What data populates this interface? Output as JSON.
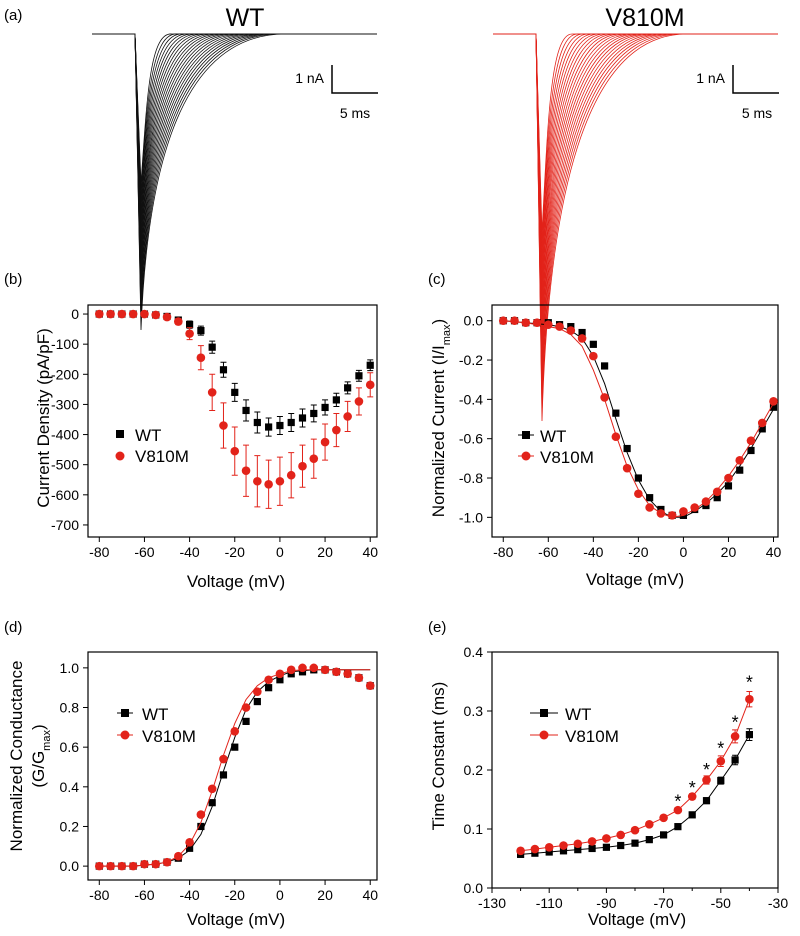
{
  "panel_a": {
    "tag": "(a)",
    "wt_title": "WT",
    "mut_title": "V810M",
    "wt_scale_current": "1 nA",
    "wt_scale_time": "5 ms",
    "mut_scale_current": "1 nA",
    "mut_scale_time": "5 ms",
    "wt_color": "#111111",
    "mut_color": "#e2231a"
  },
  "chart_data": [
    {
      "panel": "b",
      "tag": "(b)",
      "type": "scatter",
      "xlabel": "Voltage (mV)",
      "ylabel": "Current Density (pA/pF)",
      "xlim": [
        -85,
        43
      ],
      "ylim": [
        -740,
        30
      ],
      "xticks": [
        -80,
        -60,
        -40,
        -20,
        0,
        20,
        40
      ],
      "yticks": [
        0,
        -100,
        -200,
        -300,
        -400,
        -500,
        -600,
        -700
      ],
      "legend": "left",
      "x": [
        -80,
        -75,
        -70,
        -65,
        -60,
        -55,
        -50,
        -45,
        -40,
        -35,
        -30,
        -25,
        -20,
        -15,
        -10,
        -5,
        0,
        5,
        10,
        15,
        20,
        25,
        30,
        35,
        40
      ],
      "series": [
        {
          "name": "WT",
          "marker": "square",
          "color": "#000000",
          "values": [
            0,
            0,
            0,
            0,
            0,
            -3,
            -8,
            -20,
            -35,
            -55,
            -110,
            -185,
            -260,
            -320,
            -360,
            -375,
            -370,
            -360,
            -345,
            -330,
            -310,
            -285,
            -245,
            -205,
            -170
          ],
          "errors": [
            2,
            2,
            2,
            2,
            2,
            3,
            5,
            8,
            12,
            15,
            20,
            25,
            30,
            35,
            35,
            30,
            30,
            30,
            30,
            28,
            25,
            22,
            20,
            18,
            18
          ]
        },
        {
          "name": "V810M",
          "marker": "circle",
          "color": "#e2231a",
          "values": [
            0,
            0,
            0,
            0,
            0,
            -3,
            -10,
            -25,
            -65,
            -145,
            -260,
            -370,
            -455,
            -520,
            -555,
            -565,
            -555,
            -535,
            -505,
            -480,
            -425,
            -385,
            -340,
            -290,
            -235
          ],
          "errors": [
            2,
            2,
            2,
            2,
            3,
            4,
            6,
            10,
            20,
            40,
            60,
            75,
            80,
            85,
            85,
            80,
            80,
            75,
            70,
            65,
            60,
            55,
            50,
            45,
            40
          ]
        }
      ]
    },
    {
      "panel": "c",
      "tag": "(c)",
      "type": "scatter",
      "xlabel": "Voltage (mV)",
      "ylabel": "Normalized Current (I/I",
      "ylabel_sub": "max",
      "ylabel_end": ")",
      "xlim": [
        -85,
        42
      ],
      "ylim": [
        -1.1,
        0.08
      ],
      "xticks": [
        -80,
        -60,
        -40,
        -20,
        0,
        20,
        40
      ],
      "yticks": [
        0.0,
        -0.2,
        -0.4,
        -0.6,
        -0.8,
        -1.0
      ],
      "ytick_labels": [
        "0.0",
        "-0.2",
        "-0.4",
        "-0.6",
        "-0.8",
        "-1.0"
      ],
      "legend": "left",
      "x": [
        -80,
        -75,
        -70,
        -65,
        -60,
        -55,
        -50,
        -45,
        -40,
        -35,
        -30,
        -25,
        -20,
        -15,
        -10,
        -5,
        0,
        5,
        10,
        15,
        20,
        25,
        30,
        35,
        40
      ],
      "series": [
        {
          "name": "WT",
          "marker": "square",
          "color": "#000000",
          "values": [
            0.0,
            0.0,
            -0.01,
            -0.01,
            -0.01,
            -0.02,
            -0.03,
            -0.06,
            -0.12,
            -0.23,
            -0.47,
            -0.65,
            -0.8,
            -0.9,
            -0.96,
            -0.99,
            -0.99,
            -0.96,
            -0.94,
            -0.9,
            -0.84,
            -0.76,
            -0.66,
            -0.55,
            -0.44
          ],
          "fit": [
            0.0,
            -0.005,
            -0.01,
            -0.015,
            -0.02,
            -0.03,
            -0.05,
            -0.09,
            -0.18,
            -0.32,
            -0.5,
            -0.67,
            -0.81,
            -0.91,
            -0.97,
            -1.0,
            -1.0,
            -0.97,
            -0.93,
            -0.88,
            -0.82,
            -0.74,
            -0.65,
            -0.55,
            -0.45
          ]
        },
        {
          "name": "V810M",
          "marker": "circle",
          "color": "#e2231a",
          "values": [
            0.0,
            0.0,
            -0.01,
            -0.01,
            -0.02,
            -0.03,
            -0.05,
            -0.09,
            -0.18,
            -0.39,
            -0.59,
            -0.75,
            -0.88,
            -0.95,
            -0.98,
            -0.99,
            -0.97,
            -0.95,
            -0.92,
            -0.87,
            -0.8,
            -0.71,
            -0.61,
            -0.52,
            -0.41
          ],
          "fit": [
            0.0,
            -0.005,
            -0.01,
            -0.02,
            -0.03,
            -0.04,
            -0.07,
            -0.13,
            -0.25,
            -0.4,
            -0.58,
            -0.74,
            -0.86,
            -0.94,
            -0.98,
            -1.0,
            -0.99,
            -0.96,
            -0.92,
            -0.86,
            -0.79,
            -0.71,
            -0.62,
            -0.52,
            -0.42
          ]
        }
      ]
    },
    {
      "panel": "d",
      "tag": "(d)",
      "type": "scatter",
      "xlabel": "Voltage (mV)",
      "ylabel_line1": "Normalized Conductance",
      "ylabel_line2": "(G/G",
      "ylabel_sub": "max",
      "ylabel_end": ")",
      "xlim": [
        -85,
        43
      ],
      "ylim": [
        -0.07,
        1.08
      ],
      "xticks": [
        -80,
        -60,
        -40,
        -20,
        0,
        20,
        40
      ],
      "yticks": [
        0.0,
        0.2,
        0.4,
        0.6,
        0.8,
        1.0
      ],
      "ytick_labels": [
        "0.0",
        "0.2",
        "0.4",
        "0.6",
        "0.8",
        "1.0"
      ],
      "legend": "left",
      "x": [
        -80,
        -75,
        -70,
        -65,
        -60,
        -55,
        -50,
        -45,
        -40,
        -35,
        -30,
        -25,
        -20,
        -15,
        -10,
        -5,
        0,
        5,
        10,
        15,
        20,
        25,
        30,
        35,
        40
      ],
      "series": [
        {
          "name": "WT",
          "marker": "square",
          "color": "#000000",
          "values": [
            0.0,
            0.0,
            0.0,
            0.0,
            0.01,
            0.01,
            0.02,
            0.04,
            0.09,
            0.2,
            0.32,
            0.46,
            0.6,
            0.73,
            0.83,
            0.9,
            0.94,
            0.97,
            0.98,
            0.99,
            0.99,
            0.98,
            0.97,
            0.95,
            0.91
          ],
          "fit": [
            0.0,
            0.0,
            0.0,
            0.0,
            0.005,
            0.01,
            0.02,
            0.04,
            0.08,
            0.16,
            0.3,
            0.48,
            0.65,
            0.79,
            0.88,
            0.93,
            0.96,
            0.98,
            0.985,
            0.99,
            0.99,
            0.99,
            0.99,
            0.99,
            0.99
          ]
        },
        {
          "name": "V810M",
          "marker": "circle",
          "color": "#e2231a",
          "values": [
            0.0,
            0.0,
            0.0,
            0.0,
            0.01,
            0.01,
            0.02,
            0.05,
            0.12,
            0.26,
            0.39,
            0.54,
            0.68,
            0.8,
            0.88,
            0.94,
            0.97,
            0.99,
            1.0,
            1.0,
            0.99,
            0.98,
            0.97,
            0.95,
            0.91
          ],
          "fit": [
            0.0,
            0.0,
            0.0,
            0.0,
            0.005,
            0.01,
            0.02,
            0.05,
            0.11,
            0.22,
            0.38,
            0.56,
            0.72,
            0.84,
            0.91,
            0.95,
            0.97,
            0.985,
            0.99,
            0.99,
            0.99,
            0.99,
            0.99,
            0.99,
            0.99
          ]
        }
      ]
    },
    {
      "panel": "e",
      "tag": "(e)",
      "type": "line",
      "xlabel": "Voltage (mV)",
      "ylabel": "Time Constant (ms)",
      "xlim": [
        -130,
        -30
      ],
      "ylim": [
        0.0,
        0.4
      ],
      "xticks": [
        -130,
        -110,
        -90,
        -70,
        -50,
        -30
      ],
      "xminor": [
        -120,
        -100,
        -80,
        -60,
        -40
      ],
      "yticks": [
        0.0,
        0.1,
        0.2,
        0.3,
        0.4
      ],
      "ytick_labels": [
        "0.0",
        "0.1",
        "0.2",
        "0.3",
        "0.4"
      ],
      "legend": "left",
      "x": [
        -120,
        -115,
        -110,
        -105,
        -100,
        -95,
        -90,
        -85,
        -80,
        -75,
        -70,
        -65,
        -60,
        -55,
        -50,
        -45,
        -40
      ],
      "series": [
        {
          "name": "WT",
          "marker": "square",
          "color": "#000000",
          "values": [
            0.057,
            0.059,
            0.061,
            0.063,
            0.065,
            0.067,
            0.069,
            0.072,
            0.076,
            0.082,
            0.09,
            0.104,
            0.124,
            0.148,
            0.182,
            0.217,
            0.26
          ],
          "errors": [
            0,
            0,
            0,
            0,
            0,
            0,
            0,
            0,
            0,
            0,
            0,
            0.003,
            0.004,
            0.005,
            0.006,
            0.008,
            0.01
          ]
        },
        {
          "name": "V810M",
          "marker": "circle",
          "color": "#e2231a",
          "values": [
            0.063,
            0.066,
            0.069,
            0.072,
            0.075,
            0.079,
            0.084,
            0.09,
            0.098,
            0.108,
            0.119,
            0.132,
            0.155,
            0.183,
            0.215,
            0.257,
            0.32
          ],
          "errors": [
            0,
            0,
            0,
            0,
            0,
            0,
            0,
            0,
            0,
            0,
            0,
            0.004,
            0.005,
            0.007,
            0.009,
            0.011,
            0.013
          ]
        }
      ],
      "annotations": [
        {
          "text": "*",
          "x": -65,
          "y": 0.15
        },
        {
          "text": "*",
          "x": -60,
          "y": 0.173
        },
        {
          "text": "*",
          "x": -55,
          "y": 0.203
        },
        {
          "text": "*",
          "x": -50,
          "y": 0.24
        },
        {
          "text": "*",
          "x": -45,
          "y": 0.284
        },
        {
          "text": "*",
          "x": -40,
          "y": 0.352
        }
      ]
    }
  ]
}
